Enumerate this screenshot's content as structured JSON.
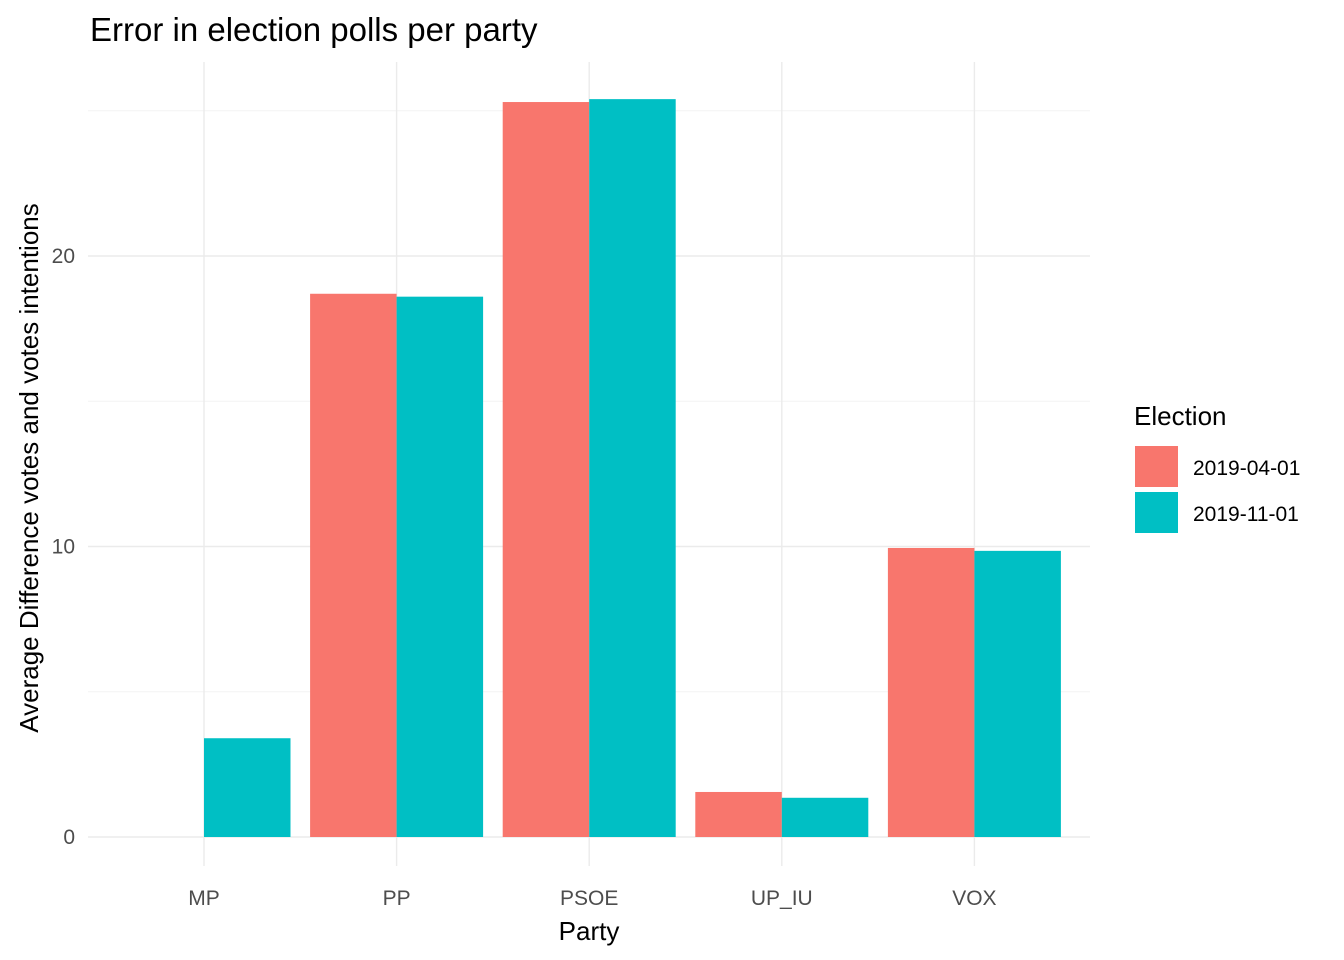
{
  "chart_data": {
    "type": "bar",
    "title": "Error in election polls per party",
    "xlabel": "Party",
    "ylabel": "Average Difference votes and votes intentions",
    "categories": [
      "MP",
      "PP",
      "PSOE",
      "UP_IU",
      "VOX"
    ],
    "series": [
      {
        "name": "2019-04-01",
        "color": "#F8766D",
        "values": [
          null,
          18.7,
          25.3,
          1.55,
          9.95
        ]
      },
      {
        "name": "2019-11-01",
        "color": "#00BFC4",
        "values": [
          3.4,
          18.6,
          25.4,
          1.35,
          9.85
        ]
      }
    ],
    "ylim": [
      0,
      26
    ],
    "yticks": [
      0,
      10,
      20
    ],
    "grid": true,
    "legend": {
      "title": "Election",
      "position": "right"
    }
  }
}
